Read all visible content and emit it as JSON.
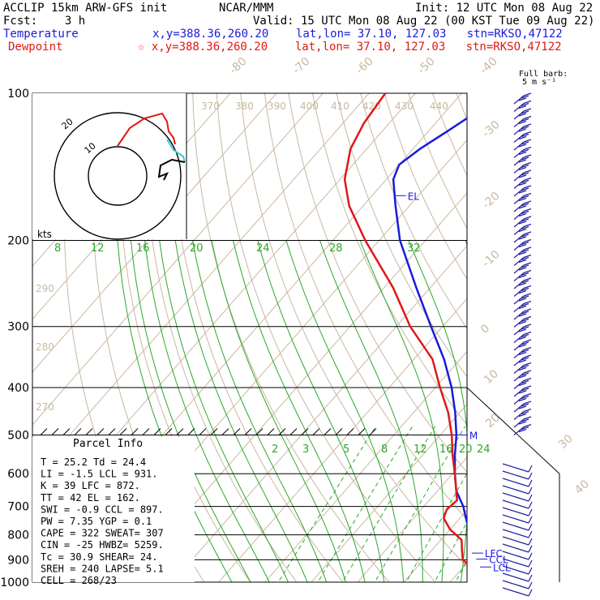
{
  "header": {
    "line1_left": "ACCLIP 15km ARW-GFS init",
    "line1_mid": "NCAR/MMM",
    "line1_right": "Init: 12 UTC Mon 08 Aug 22",
    "line2_left": "Fcst:    3 h",
    "line2_right": "Valid: 15 UTC Mon 08 Aug 22 (00 KST Tue 09 Aug 22)",
    "temp_label": "Temperature",
    "temp_info": "x,y=388.36,260.20    lat,lon= 37.10, 127.03   stn=RKSO,47122",
    "dew_label": "Dewpoint",
    "dew_info": "☆ x,y=388.36,260.20    lat,lon= 37.10, 127.03   stn=RKSO,47122",
    "barb_title1": "Full barb:",
    "barb_title2": "5 m s⁻¹"
  },
  "colors": {
    "temperature": "#1a1adc",
    "dewpoint": "#e01818",
    "isotherm": "#c8b8a0",
    "dry_adiabat": "#c8b8a0",
    "moist_adiabat": "#2aa82a",
    "mixing_ratio": "#2aa82a",
    "hodograph_low": "#40c8e0",
    "barbs": "#2020a0"
  },
  "chart_data": {
    "type": "skew-T log-p sounding",
    "pressure_axis": {
      "unit": "hPa",
      "scale": "log",
      "range": [
        1000,
        100
      ],
      "ticks": [
        "100",
        "200",
        "300",
        "400",
        "500",
        "600",
        "700",
        "800",
        "900",
        "1000"
      ]
    },
    "isotherm_labels": [
      "-80",
      "-70",
      "-60",
      "-50",
      "-40",
      "-30",
      "-20",
      "-10",
      "0",
      "10",
      "20",
      "30",
      "40"
    ],
    "theta_labels": [
      "370",
      "380",
      "390",
      "400",
      "410",
      "420",
      "430",
      "440",
      "290",
      "280",
      "270"
    ],
    "moist_adiabat_labels": [
      "8",
      "12",
      "16",
      "20",
      "24",
      "28",
      "32"
    ],
    "mixing_ratio_labels": [
      "2",
      "3",
      "5",
      "8",
      "12",
      "16",
      "20",
      "24"
    ],
    "temperature": {
      "name": "Temperature",
      "points": [
        {
          "p": 990,
          "t": 26.5
        },
        {
          "p": 960,
          "t": 25.5
        },
        {
          "p": 930,
          "t": 23.5
        },
        {
          "p": 900,
          "t": 21.5
        },
        {
          "p": 870,
          "t": 19.0
        },
        {
          "p": 850,
          "t": 18.0
        },
        {
          "p": 800,
          "t": 15.5
        },
        {
          "p": 750,
          "t": 12.0
        },
        {
          "p": 700,
          "t": 8.5
        },
        {
          "p": 650,
          "t": 4.0
        },
        {
          "p": 600,
          "t": 0.5
        },
        {
          "p": 550,
          "t": -3.0
        },
        {
          "p": 500,
          "t": -6.5
        },
        {
          "p": 450,
          "t": -11.0
        },
        {
          "p": 400,
          "t": -16.5
        },
        {
          "p": 350,
          "t": -23.5
        },
        {
          "p": 300,
          "t": -32.5
        },
        {
          "p": 250,
          "t": -43.0
        },
        {
          "p": 200,
          "t": -55.5
        },
        {
          "p": 170,
          "t": -63.0
        },
        {
          "p": 150,
          "t": -68.5
        },
        {
          "p": 140,
          "t": -70.0
        },
        {
          "p": 130,
          "t": -68.5
        },
        {
          "p": 120,
          "t": -66.0
        },
        {
          "p": 110,
          "t": -63.5
        },
        {
          "p": 100,
          "t": -61.5
        }
      ]
    },
    "dewpoint": {
      "name": "Dewpoint",
      "points": [
        {
          "p": 990,
          "t": 24.5
        },
        {
          "p": 960,
          "t": 23.5
        },
        {
          "p": 930,
          "t": 21.5
        },
        {
          "p": 900,
          "t": 18.5
        },
        {
          "p": 860,
          "t": 16.5
        },
        {
          "p": 820,
          "t": 14.5
        },
        {
          "p": 780,
          "t": 10.0
        },
        {
          "p": 740,
          "t": 6.5
        },
        {
          "p": 710,
          "t": 5.5
        },
        {
          "p": 680,
          "t": 6.0
        },
        {
          "p": 650,
          "t": 4.0
        },
        {
          "p": 600,
          "t": 0.5
        },
        {
          "p": 550,
          "t": -3.5
        },
        {
          "p": 500,
          "t": -7.5
        },
        {
          "p": 450,
          "t": -12.5
        },
        {
          "p": 400,
          "t": -19.0
        },
        {
          "p": 350,
          "t": -26.0
        },
        {
          "p": 300,
          "t": -37.0
        },
        {
          "p": 250,
          "t": -48.0
        },
        {
          "p": 200,
          "t": -63.0
        },
        {
          "p": 170,
          "t": -73.0
        },
        {
          "p": 150,
          "t": -79.0
        },
        {
          "p": 130,
          "t": -83.5
        },
        {
          "p": 115,
          "t": -85.5
        },
        {
          "p": 100,
          "t": -86.5
        }
      ]
    },
    "parcel_levels": [
      {
        "label": "LFC",
        "p": 872
      },
      {
        "label": "CCL",
        "p": 897
      },
      {
        "label": "LCL",
        "p": 931
      },
      {
        "label": "EL",
        "p": 162
      },
      {
        "label": "M",
        "p": 500
      }
    ],
    "parcel_info": {
      "title": "Parcel Info",
      "rows": [
        "T  =   25.2  Td =  24.4",
        "LI =   -1.5  LCL =  931.",
        "K  =     39  LFC =  872.",
        "TT =     42  EL  =  162.",
        "SWI =  -0.9  CCL =  897.",
        "PW =   7.35  YGP =   0.1",
        "CAPE =  322  SWEAT=  307",
        "CIN =   -25  HWBZ= 5259.",
        "Tc =   30.9  SHEAR=  24.",
        "SREH =  240  LAPSE=  5.1",
        "CELL = 268/23"
      ]
    },
    "hodograph": {
      "unit_label": "kts",
      "ring_labels": [
        "10",
        "20"
      ]
    },
    "grid": true
  }
}
